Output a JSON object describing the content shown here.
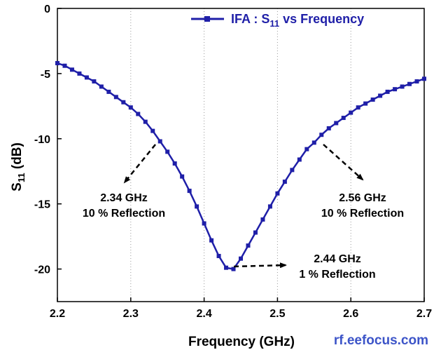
{
  "chart_data": {
    "type": "line",
    "xlabel": "Frequency (GHz)",
    "ylabel": {
      "main": "S",
      "sub": "11",
      "unit": " (dB)"
    },
    "xlim": [
      2.2,
      2.7
    ],
    "ylim": [
      -22.5,
      0
    ],
    "x_ticks": [
      "2.2",
      "2.3",
      "2.4",
      "2.5",
      "2.6",
      "2.7"
    ],
    "y_ticks": [
      "0",
      "-5",
      "-10",
      "-15",
      "-20"
    ],
    "grid": "vertical dotted",
    "legend": {
      "position": "top-right"
    },
    "series": [
      {
        "name": {
          "main": "IFA : S",
          "sub": "11",
          "rest": " vs Frequency"
        },
        "color": "#1f1fa8",
        "marker": "square",
        "x": [
          2.2,
          2.21,
          2.22,
          2.23,
          2.24,
          2.25,
          2.26,
          2.27,
          2.28,
          2.29,
          2.3,
          2.31,
          2.32,
          2.33,
          2.34,
          2.35,
          2.36,
          2.37,
          2.38,
          2.39,
          2.4,
          2.41,
          2.42,
          2.43,
          2.44,
          2.45,
          2.46,
          2.47,
          2.48,
          2.49,
          2.5,
          2.51,
          2.52,
          2.53,
          2.54,
          2.55,
          2.56,
          2.57,
          2.58,
          2.59,
          2.6,
          2.61,
          2.62,
          2.63,
          2.64,
          2.65,
          2.66,
          2.67,
          2.68,
          2.69,
          2.7
        ],
        "y": [
          -4.2,
          -4.4,
          -4.7,
          -5.0,
          -5.3,
          -5.6,
          -6.0,
          -6.4,
          -6.8,
          -7.2,
          -7.6,
          -8.1,
          -8.7,
          -9.4,
          -10.2,
          -11.0,
          -11.9,
          -12.9,
          -14.0,
          -15.2,
          -16.5,
          -17.8,
          -19.0,
          -19.9,
          -20.0,
          -19.2,
          -18.2,
          -17.2,
          -16.2,
          -15.2,
          -14.2,
          -13.3,
          -12.4,
          -11.6,
          -10.8,
          -10.3,
          -9.7,
          -9.2,
          -8.8,
          -8.4,
          -8.0,
          -7.6,
          -7.3,
          -7.0,
          -6.7,
          -6.4,
          -6.2,
          -6.0,
          -5.8,
          -5.6,
          -5.4
        ]
      }
    ],
    "annotations": [
      {
        "line1": "2.34 GHz",
        "line2": "10 % Reflection"
      },
      {
        "line1": "2.56 GHz",
        "line2": "10 % Reflection"
      },
      {
        "line1": "2.44 GHz",
        "line2": "1 % Reflection"
      }
    ]
  },
  "watermark": "rf.eefocus.com"
}
